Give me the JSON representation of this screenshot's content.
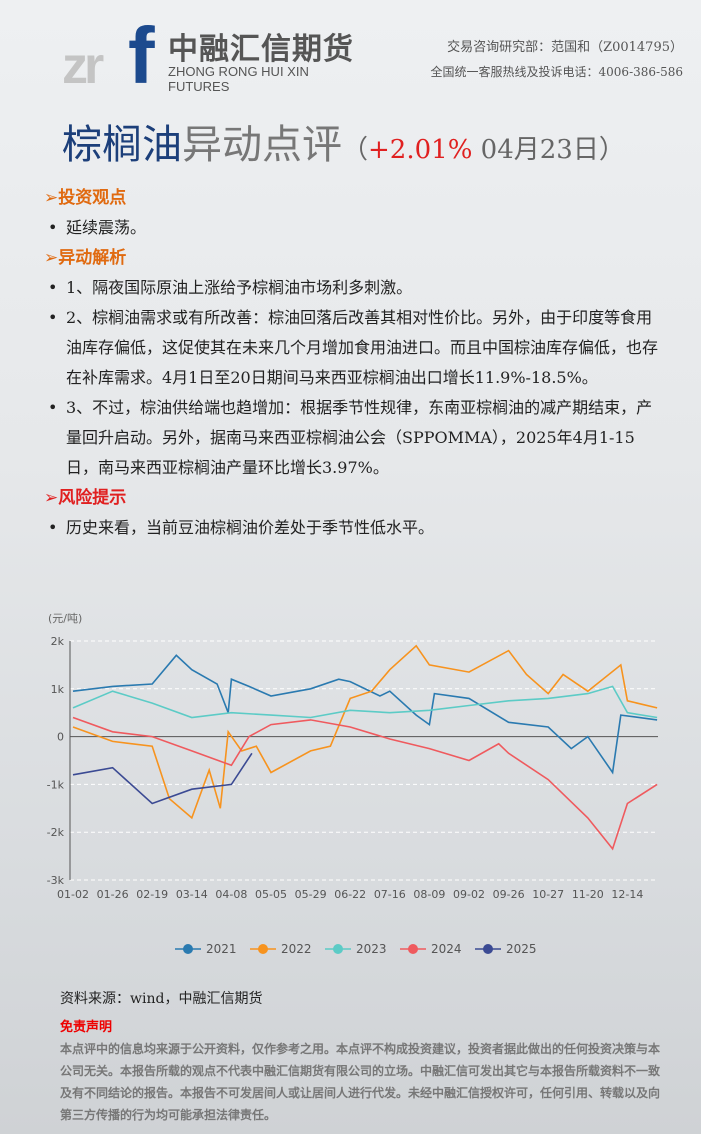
{
  "header": {
    "logo_latin": "zr",
    "logo_f": "f",
    "logo_cn": "中融汇信期货",
    "logo_en": "ZHONG RONG HUI XIN FUTURES",
    "analyst": "交易咨询研究部：范国和（Z0014795）",
    "hotline": "全国统一客服热线及投诉电话：4006-386-586"
  },
  "title": {
    "product": "棕榈油",
    "kind": "异动点评",
    "open": "（",
    "change": "+2.01%",
    "date": " 04月23日",
    "close": "）"
  },
  "sections": [
    {
      "heading": "➢投资观点",
      "color": "#e06a10",
      "items": [
        "延续震荡。"
      ]
    },
    {
      "heading": "➢异动解析",
      "color": "#e06a10",
      "items": [
        "1、隔夜国际原油上涨给予棕榈油市场利多刺激。",
        "2、棕榈油需求或有所改善：棕油回落后改善其相对性价比。另外，由于印度等食用油库存偏低，这促使其在未来几个月增加食用油进口。而且中国棕油库存偏低，也存在补库需求。4月1日至20日期间马来西亚棕榈油出口增长11.9%-18.5%。",
        "3、不过，棕油供给端也趋增加：根据季节性规律，东南亚棕榈油的减产期结束，产量回升启动。另外，据南马来西亚棕榈油公会（SPPOMMA），2025年4月1-15日，南马来西亚棕榈油产量环比增长3.97%。"
      ]
    },
    {
      "heading": "➢风险提示",
      "color": "#e02020",
      "items": [
        "历史来看，当前豆油棕榈油价差处于季节性低水平。"
      ]
    }
  ],
  "chart_data": {
    "type": "line",
    "ylabel": "(元/吨)",
    "ylim": [
      -3000,
      2000
    ],
    "yticks": [
      {
        "v": 2000,
        "l": "2k"
      },
      {
        "v": 1000,
        "l": "1k"
      },
      {
        "v": 0,
        "l": "0"
      },
      {
        "v": -1000,
        "l": "-1k"
      },
      {
        "v": -2000,
        "l": "-2k"
      },
      {
        "v": -3000,
        "l": "-3k"
      }
    ],
    "xticks": [
      "01-02",
      "01-26",
      "02-19",
      "03-14",
      "04-08",
      "05-05",
      "05-29",
      "06-22",
      "07-16",
      "08-09",
      "09-02",
      "09-26",
      "10-27",
      "11-20",
      "12-14"
    ],
    "grid": true,
    "legend": "bottom",
    "series": [
      {
        "name": "2021",
        "color": "#2a7ab0",
        "points": [
          [
            "01-02",
            950
          ],
          [
            "01-26",
            1050
          ],
          [
            "02-19",
            1100
          ],
          [
            "03-05",
            1700
          ],
          [
            "03-14",
            1400
          ],
          [
            "03-30",
            1100
          ],
          [
            "04-06",
            500
          ],
          [
            "04-08",
            1200
          ],
          [
            "04-20",
            1050
          ],
          [
            "05-05",
            850
          ],
          [
            "05-29",
            1000
          ],
          [
            "06-15",
            1200
          ],
          [
            "06-22",
            1150
          ],
          [
            "07-10",
            850
          ],
          [
            "07-16",
            950
          ],
          [
            "08-01",
            450
          ],
          [
            "08-09",
            250
          ],
          [
            "08-12",
            900
          ],
          [
            "09-02",
            800
          ],
          [
            "09-26",
            300
          ],
          [
            "10-27",
            200
          ],
          [
            "11-10",
            -250
          ],
          [
            "11-20",
            0
          ],
          [
            "12-05",
            -750
          ],
          [
            "12-10",
            450
          ],
          [
            "12-31",
            350
          ]
        ]
      },
      {
        "name": "2022",
        "color": "#f7931e",
        "points": [
          [
            "01-02",
            200
          ],
          [
            "01-26",
            -100
          ],
          [
            "02-19",
            -200
          ],
          [
            "03-01",
            -1300
          ],
          [
            "03-14",
            -1700
          ],
          [
            "03-25",
            -700
          ],
          [
            "04-01",
            -1500
          ],
          [
            "04-06",
            100
          ],
          [
            "04-15",
            -300
          ],
          [
            "04-25",
            -200
          ],
          [
            "05-05",
            -750
          ],
          [
            "05-29",
            -300
          ],
          [
            "06-10",
            -200
          ],
          [
            "06-22",
            800
          ],
          [
            "07-05",
            950
          ],
          [
            "07-16",
            1400
          ],
          [
            "08-01",
            1900
          ],
          [
            "08-09",
            1500
          ],
          [
            "09-02",
            1350
          ],
          [
            "09-26",
            1800
          ],
          [
            "10-10",
            1300
          ],
          [
            "10-27",
            900
          ],
          [
            "11-05",
            1300
          ],
          [
            "11-20",
            950
          ],
          [
            "12-10",
            1500
          ],
          [
            "12-14",
            750
          ],
          [
            "12-31",
            600
          ]
        ]
      },
      {
        "name": "2023",
        "color": "#5ccbc6",
        "points": [
          [
            "01-02",
            600
          ],
          [
            "01-26",
            950
          ],
          [
            "02-19",
            700
          ],
          [
            "03-14",
            400
          ],
          [
            "04-08",
            500
          ],
          [
            "05-05",
            450
          ],
          [
            "05-29",
            400
          ],
          [
            "06-22",
            550
          ],
          [
            "07-16",
            500
          ],
          [
            "08-09",
            550
          ],
          [
            "09-02",
            650
          ],
          [
            "09-26",
            750
          ],
          [
            "10-27",
            800
          ],
          [
            "11-20",
            900
          ],
          [
            "12-05",
            1050
          ],
          [
            "12-14",
            500
          ],
          [
            "12-31",
            400
          ]
        ]
      },
      {
        "name": "2024",
        "color": "#ef5a5e",
        "points": [
          [
            "01-02",
            400
          ],
          [
            "01-26",
            100
          ],
          [
            "02-19",
            0
          ],
          [
            "03-14",
            -300
          ],
          [
            "04-08",
            -600
          ],
          [
            "04-20",
            0
          ],
          [
            "05-05",
            250
          ],
          [
            "05-29",
            350
          ],
          [
            "06-22",
            200
          ],
          [
            "07-16",
            -50
          ],
          [
            "08-09",
            -250
          ],
          [
            "09-02",
            -500
          ],
          [
            "09-20",
            -150
          ],
          [
            "09-26",
            -350
          ],
          [
            "10-27",
            -900
          ],
          [
            "11-20",
            -1700
          ],
          [
            "12-05",
            -2350
          ],
          [
            "12-14",
            -1400
          ],
          [
            "12-31",
            -1000
          ]
        ]
      },
      {
        "name": "2025",
        "color": "#3b4a93",
        "points": [
          [
            "01-02",
            -800
          ],
          [
            "01-26",
            -650
          ],
          [
            "02-19",
            -1400
          ],
          [
            "03-14",
            -1100
          ],
          [
            "04-08",
            -1000
          ],
          [
            "04-22",
            -350
          ]
        ]
      }
    ]
  },
  "footer": {
    "source": "资料来源：wind，中融汇信期货",
    "disclaimer_title": "免责声明",
    "disclaimer": "本点评中的信息均来源于公开资料，仅作参考之用。本点评不构成投资建议，投资者据此做出的任何投资决策与本公司无关。本报告所载的观点不代表中融汇信期货有限公司的立场。中融汇信可发出其它与本报告所载资料不一致及有不同结论的报告。本报告不可发居间人或让居间人进行代发。未经中融汇信授权许可，任何引用、转载以及向第三方传播的行为均可能承担法律责任。"
  }
}
